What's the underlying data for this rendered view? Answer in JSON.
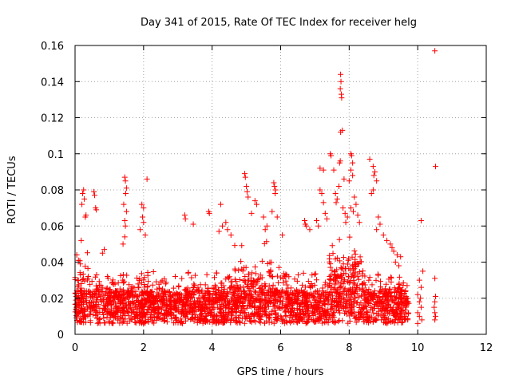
{
  "chart_data": {
    "type": "scatter",
    "title": "Day 341 of 2015, Rate Of TEC Index for receiver helg",
    "xlabel": "GPS time / hours",
    "ylabel": "ROTI / TECUs",
    "xlim": [
      0,
      12
    ],
    "ylim": [
      0,
      0.16
    ],
    "xticks": [
      0,
      2,
      4,
      6,
      8,
      10,
      12
    ],
    "xtick_labels": [
      "0",
      "2",
      "4",
      "6",
      "8",
      "10",
      "12"
    ],
    "yticks": [
      0,
      0.02,
      0.04,
      0.06,
      0.08,
      0.1,
      0.12,
      0.14,
      0.16
    ],
    "ytick_labels": [
      "0",
      "0.02",
      "0.04",
      "0.06",
      "0.08",
      "0.1",
      "0.12",
      "0.14",
      "0.16"
    ],
    "grid": true,
    "marker": "+",
    "color": "#ff0000",
    "series": [
      {
        "name": "ROTI",
        "points": [
          [
            0.05,
            0.044
          ],
          [
            0.1,
            0.041
          ],
          [
            0.15,
            0.039
          ],
          [
            0.2,
            0.072
          ],
          [
            0.22,
            0.078
          ],
          [
            0.25,
            0.08
          ],
          [
            0.27,
            0.075
          ],
          [
            0.3,
            0.065
          ],
          [
            0.32,
            0.066
          ],
          [
            0.18,
            0.052
          ],
          [
            0.55,
            0.079
          ],
          [
            0.57,
            0.077
          ],
          [
            0.6,
            0.07
          ],
          [
            0.62,
            0.069
          ],
          [
            0.85,
            0.047
          ],
          [
            0.8,
            0.045
          ],
          [
            1.45,
            0.087
          ],
          [
            1.47,
            0.085
          ],
          [
            1.5,
            0.081
          ],
          [
            1.48,
            0.078
          ],
          [
            1.42,
            0.072
          ],
          [
            1.5,
            0.068
          ],
          [
            1.45,
            0.063
          ],
          [
            1.47,
            0.06
          ],
          [
            1.45,
            0.054
          ],
          [
            1.4,
            0.05
          ],
          [
            1.95,
            0.072
          ],
          [
            2.0,
            0.07
          ],
          [
            1.97,
            0.065
          ],
          [
            2.0,
            0.062
          ],
          [
            2.1,
            0.086
          ],
          [
            1.9,
            0.058
          ],
          [
            2.05,
            0.055
          ],
          [
            3.2,
            0.066
          ],
          [
            3.22,
            0.064
          ],
          [
            3.45,
            0.061
          ],
          [
            3.9,
            0.068
          ],
          [
            3.92,
            0.067
          ],
          [
            4.25,
            0.072
          ],
          [
            4.4,
            0.062
          ],
          [
            4.45,
            0.058
          ],
          [
            4.55,
            0.055
          ],
          [
            4.3,
            0.06
          ],
          [
            4.2,
            0.057
          ],
          [
            4.95,
            0.089
          ],
          [
            4.97,
            0.087
          ],
          [
            5.0,
            0.082
          ],
          [
            5.02,
            0.079
          ],
          [
            5.05,
            0.076
          ],
          [
            5.25,
            0.074
          ],
          [
            5.3,
            0.072
          ],
          [
            5.15,
            0.067
          ],
          [
            5.5,
            0.065
          ],
          [
            5.6,
            0.06
          ],
          [
            5.55,
            0.058
          ],
          [
            5.8,
            0.084
          ],
          [
            5.82,
            0.082
          ],
          [
            5.85,
            0.08
          ],
          [
            5.84,
            0.078
          ],
          [
            5.75,
            0.068
          ],
          [
            5.9,
            0.065
          ],
          [
            6.05,
            0.055
          ],
          [
            6.7,
            0.063
          ],
          [
            6.72,
            0.061
          ],
          [
            6.75,
            0.06
          ],
          [
            6.85,
            0.058
          ],
          [
            7.05,
            0.063
          ],
          [
            7.1,
            0.06
          ],
          [
            7.15,
            0.08
          ],
          [
            7.2,
            0.078
          ],
          [
            7.25,
            0.073
          ],
          [
            7.3,
            0.067
          ],
          [
            7.35,
            0.064
          ],
          [
            7.15,
            0.092
          ],
          [
            7.25,
            0.091
          ],
          [
            7.45,
            0.1
          ],
          [
            7.47,
            0.099
          ],
          [
            7.55,
            0.091
          ],
          [
            7.6,
            0.078
          ],
          [
            7.65,
            0.075
          ],
          [
            7.62,
            0.073
          ],
          [
            7.75,
            0.144
          ],
          [
            7.76,
            0.14
          ],
          [
            7.74,
            0.136
          ],
          [
            7.77,
            0.133
          ],
          [
            7.78,
            0.131
          ],
          [
            7.75,
            0.112
          ],
          [
            7.8,
            0.113
          ],
          [
            7.72,
            0.095
          ],
          [
            7.74,
            0.096
          ],
          [
            7.85,
            0.086
          ],
          [
            7.7,
            0.082
          ],
          [
            7.82,
            0.07
          ],
          [
            7.88,
            0.067
          ],
          [
            7.95,
            0.065
          ],
          [
            7.9,
            0.062
          ],
          [
            8.05,
            0.1
          ],
          [
            8.07,
            0.099
          ],
          [
            8.1,
            0.095
          ],
          [
            8.05,
            0.091
          ],
          [
            8.1,
            0.088
          ],
          [
            8.0,
            0.085
          ],
          [
            8.15,
            0.076
          ],
          [
            8.2,
            0.072
          ],
          [
            8.25,
            0.066
          ],
          [
            8.3,
            0.062
          ],
          [
            8.05,
            0.07
          ],
          [
            8.12,
            0.068
          ],
          [
            8.6,
            0.097
          ],
          [
            8.7,
            0.093
          ],
          [
            8.75,
            0.09
          ],
          [
            8.72,
            0.088
          ],
          [
            8.8,
            0.085
          ],
          [
            8.65,
            0.078
          ],
          [
            8.7,
            0.08
          ],
          [
            8.85,
            0.065
          ],
          [
            8.9,
            0.061
          ],
          [
            8.8,
            0.058
          ],
          [
            9.0,
            0.055
          ],
          [
            9.1,
            0.052
          ],
          [
            9.2,
            0.05
          ],
          [
            9.25,
            0.048
          ],
          [
            9.3,
            0.046
          ],
          [
            9.4,
            0.044
          ],
          [
            9.5,
            0.043
          ],
          [
            9.45,
            0.038
          ],
          [
            9.35,
            0.04
          ],
          [
            10.1,
            0.063
          ],
          [
            10.15,
            0.035
          ],
          [
            10.05,
            0.03
          ],
          [
            10.1,
            0.026
          ],
          [
            10.0,
            0.022
          ],
          [
            10.05,
            0.018
          ],
          [
            10.1,
            0.015
          ],
          [
            10.0,
            0.012
          ],
          [
            10.05,
            0.01
          ],
          [
            10.12,
            0.008
          ],
          [
            10.0,
            0.006
          ],
          [
            10.08,
            0.02
          ],
          [
            10.5,
            0.157
          ],
          [
            10.52,
            0.093
          ],
          [
            10.5,
            0.031
          ],
          [
            10.52,
            0.021
          ],
          [
            10.5,
            0.018
          ],
          [
            10.48,
            0.015
          ],
          [
            10.5,
            0.012
          ],
          [
            10.52,
            0.01
          ],
          [
            10.5,
            0.008
          ]
        ]
      }
    ]
  }
}
